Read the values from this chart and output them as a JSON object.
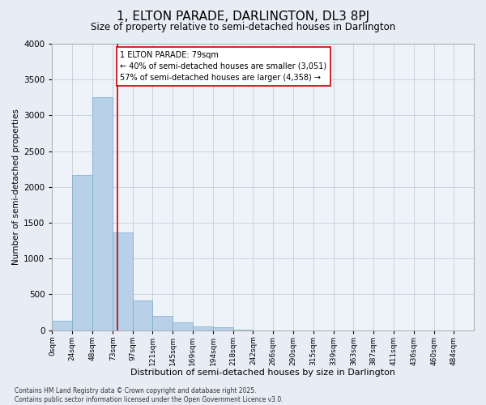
{
  "title": "1, ELTON PARADE, DARLINGTON, DL3 8PJ",
  "subtitle": "Size of property relative to semi-detached houses in Darlington",
  "xlabel": "Distribution of semi-detached houses by size in Darlington",
  "ylabel": "Number of semi-detached properties",
  "bin_labels": [
    "0sqm",
    "24sqm",
    "48sqm",
    "73sqm",
    "97sqm",
    "121sqm",
    "145sqm",
    "169sqm",
    "194sqm",
    "218sqm",
    "242sqm",
    "266sqm",
    "290sqm",
    "315sqm",
    "339sqm",
    "363sqm",
    "387sqm",
    "411sqm",
    "436sqm",
    "460sqm",
    "484sqm"
  ],
  "bin_edges": [
    0,
    24,
    48,
    73,
    97,
    121,
    145,
    169,
    194,
    218,
    242,
    266,
    290,
    315,
    339,
    363,
    387,
    411,
    436,
    460,
    484
  ],
  "bar_values": [
    130,
    2170,
    3250,
    1360,
    410,
    195,
    110,
    55,
    35,
    5,
    0,
    0,
    0,
    0,
    0,
    0,
    0,
    0,
    0,
    0
  ],
  "bar_color": "#b8d0e8",
  "bar_edge_color": "#7aaac8",
  "property_line_x": 79,
  "property_line_color": "#cc0000",
  "annotation_text": "1 ELTON PARADE: 79sqm\n← 40% of semi-detached houses are smaller (3,051)\n57% of semi-detached houses are larger (4,358) →",
  "annotation_box_color": "#ffffff",
  "annotation_box_edge_color": "#cc0000",
  "ylim": [
    0,
    4000
  ],
  "yticks": [
    0,
    500,
    1000,
    1500,
    2000,
    2500,
    3000,
    3500,
    4000
  ],
  "footer_text": "Contains HM Land Registry data © Crown copyright and database right 2025.\nContains public sector information licensed under the Open Government Licence v3.0.",
  "bg_color": "#e8edf5",
  "plot_bg_color": "#eef3fa",
  "grid_color": "#c5cdd8"
}
